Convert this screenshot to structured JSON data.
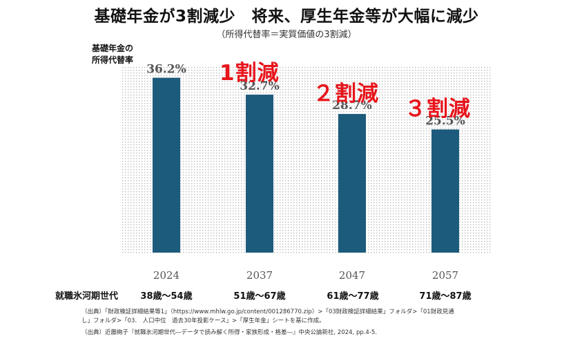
{
  "title": "基礎年金が3割減少　将来、厚生年金等が大幅に減少",
  "subtitle": "（所得代替率＝実質価値の3割減）",
  "ylabel_line1": "基礎年金の",
  "ylabel_line2": "所得代替率",
  "generation_label": "就職氷河期世代",
  "reductions": [
    "1割減",
    "２割減",
    "３割減"
  ],
  "age_ranges": [
    "38歳～54歳",
    "51歳～67歳",
    "61歳～77歳",
    "71歳～87歳"
  ],
  "sources": [
    "（出典）「財政検証詳細結果等1」（https://www.mhlw.go.jp/content/001286770.zip）>「03財政検証詳細結果」フォルダ>「01財政見通",
    "し」フォルダ>「03.　人口中位　過去30年投影ケース」>「厚生年金」シートを基に作成。",
    "（出典）近藤絢子『就職氷河期世代―データで読み解く所得・家族形成・格差―』中央公論新社, 2024, pp.4-5."
  ],
  "colors": {
    "bar": "#1d5b7c",
    "reduction": "#e8141b",
    "dots": "#b9b9b9"
  },
  "chart_data": {
    "type": "bar",
    "categories": [
      "2024",
      "2037",
      "2047",
      "2057"
    ],
    "values": [
      36.2,
      32.7,
      28.7,
      25.5
    ],
    "data_labels": [
      "36.2%",
      "32.7%",
      "28.7%",
      "25.5%"
    ],
    "ylim": [
      0,
      40
    ],
    "grid": false
  }
}
